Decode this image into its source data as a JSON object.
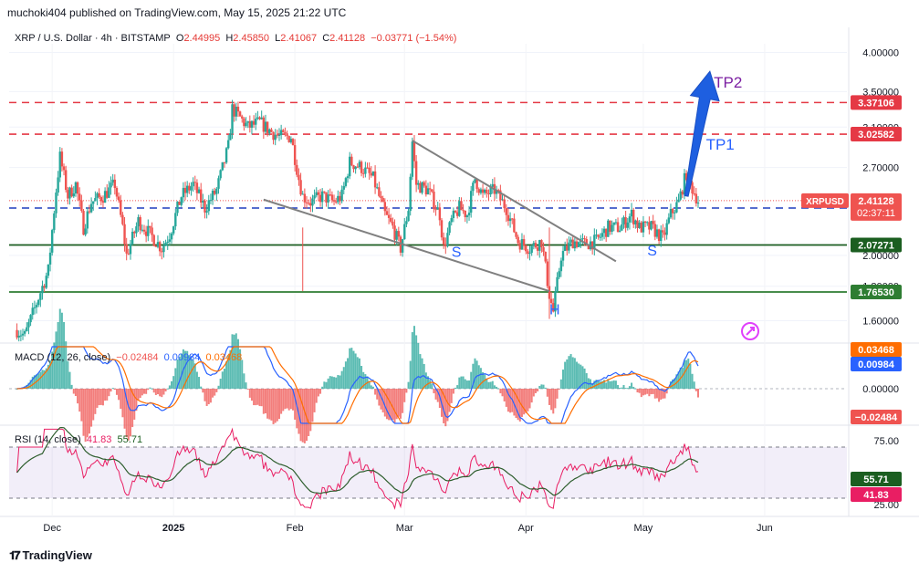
{
  "header": {
    "attribution": "muchoki404 published on TradingView.com, May 15, 2025 21:22 UTC"
  },
  "legend": {
    "symbol": "XRP / U.S. Dollar · 4h · BITSTAMP",
    "open_label": "O",
    "open": "2.44995",
    "high_label": "H",
    "high": "2.45850",
    "low_label": "L",
    "low": "2.41067",
    "close_label": "C",
    "close": "2.41128",
    "change": "−0.03771 (−1.54%)"
  },
  "macd_legend": {
    "name": "MACD (12, 26, close)",
    "hist": "−0.02484",
    "macd": "0.00984",
    "signal": "0.03468"
  },
  "rsi_legend": {
    "name": "RSI (14, close)",
    "rsi": "41.83",
    "ma": "55.71"
  },
  "footer": {
    "brand": "TradingView"
  },
  "colors": {
    "up": "#26a69a",
    "down": "#ef5350",
    "red_dash": "#e53945",
    "blue_dash": "#1f3fbf",
    "green_line": "#1b5e20",
    "arrow": "#1e5fe0",
    "tp_text": "#7b1fa2",
    "pattern_text": "#2962ff"
  },
  "chart_data": [
    {
      "type": "candlestick",
      "title": "XRP / U.S. Dollar · 4h · BITSTAMP",
      "x_ticks": [
        "Dec",
        "2025",
        "Feb",
        "Mar",
        "Apr",
        "May",
        "Jun"
      ],
      "y_ticks": [
        "4.00000",
        "3.50000",
        "3.10000",
        "2.70000",
        "2.00000",
        "1.80000",
        "1.60000"
      ],
      "ylim": [
        1.52,
        4.12
      ],
      "y_scale": "log",
      "close_path": [
        [
          "2024-11-22",
          1.55
        ],
        [
          "2024-11-24",
          1.52
        ],
        [
          "2024-11-27",
          1.7
        ],
        [
          "2024-11-30",
          1.9
        ],
        [
          "2024-12-02",
          2.5
        ],
        [
          "2024-12-03",
          2.8
        ],
        [
          "2024-12-05",
          2.45
        ],
        [
          "2024-12-07",
          2.55
        ],
        [
          "2024-12-09",
          2.2
        ],
        [
          "2024-12-11",
          2.4
        ],
        [
          "2024-12-14",
          2.45
        ],
        [
          "2024-12-17",
          2.55
        ],
        [
          "2024-12-19",
          2.2
        ],
        [
          "2024-12-20",
          2.0
        ],
        [
          "2024-12-23",
          2.25
        ],
        [
          "2024-12-26",
          2.15
        ],
        [
          "2024-12-29",
          2.05
        ],
        [
          "2024-12-31",
          2.15
        ],
        [
          "2025-01-03",
          2.45
        ],
        [
          "2025-01-06",
          2.55
        ],
        [
          "2025-01-09",
          2.35
        ],
        [
          "2025-01-12",
          2.5
        ],
        [
          "2025-01-15",
          2.9
        ],
        [
          "2025-01-16",
          3.3
        ],
        [
          "2025-01-18",
          3.2
        ],
        [
          "2025-01-20",
          3.1
        ],
        [
          "2025-01-23",
          3.15
        ],
        [
          "2025-01-26",
          3.05
        ],
        [
          "2025-01-28",
          3.0
        ],
        [
          "2025-01-31",
          3.0
        ],
        [
          "2025-02-02",
          2.6
        ],
        [
          "2025-02-03",
          2.45
        ],
        [
          "2025-02-05",
          2.4
        ],
        [
          "2025-02-08",
          2.45
        ],
        [
          "2025-02-11",
          2.4
        ],
        [
          "2025-02-13",
          2.45
        ],
        [
          "2025-02-15",
          2.75
        ],
        [
          "2025-02-18",
          2.7
        ],
        [
          "2025-02-21",
          2.6
        ],
        [
          "2025-02-24",
          2.3
        ],
        [
          "2025-02-26",
          2.2
        ],
        [
          "2025-02-28",
          2.05
        ],
        [
          "2025-03-02",
          2.35
        ],
        [
          "2025-03-03",
          2.95
        ],
        [
          "2025-03-04",
          2.55
        ],
        [
          "2025-03-07",
          2.5
        ],
        [
          "2025-03-10",
          2.3
        ],
        [
          "2025-03-11",
          2.05
        ],
        [
          "2025-03-13",
          2.25
        ],
        [
          "2025-03-15",
          2.35
        ],
        [
          "2025-03-17",
          2.3
        ],
        [
          "2025-03-19",
          2.6
        ],
        [
          "2025-03-21",
          2.45
        ],
        [
          "2025-03-24",
          2.5
        ],
        [
          "2025-03-27",
          2.35
        ],
        [
          "2025-03-30",
          2.1
        ],
        [
          "2025-04-02",
          2.05
        ],
        [
          "2025-04-05",
          2.1
        ],
        [
          "2025-04-07",
          1.75
        ],
        [
          "2025-04-08",
          1.65
        ],
        [
          "2025-04-10",
          2.0
        ],
        [
          "2025-04-13",
          2.1
        ],
        [
          "2025-04-16",
          2.08
        ],
        [
          "2025-04-19",
          2.1
        ],
        [
          "2025-04-22",
          2.2
        ],
        [
          "2025-04-25",
          2.2
        ],
        [
          "2025-04-28",
          2.3
        ],
        [
          "2025-04-30",
          2.2
        ],
        [
          "2025-05-03",
          2.2
        ],
        [
          "2025-05-06",
          2.12
        ],
        [
          "2025-05-08",
          2.3
        ],
        [
          "2025-05-10",
          2.4
        ],
        [
          "2025-05-12",
          2.65
        ],
        [
          "2025-05-13",
          2.55
        ],
        [
          "2025-05-15",
          2.41
        ]
      ],
      "price_labels": [
        {
          "value": "3.37106",
          "price": 3.37106,
          "color": "#e53945",
          "style": "dashed"
        },
        {
          "value": "3.02582",
          "price": 3.02582,
          "color": "#e53945",
          "style": "dashed"
        },
        {
          "value": "2.35127",
          "price": 2.35127,
          "color": "#1f3fbf",
          "style": "dashed"
        },
        {
          "value": "2.07271",
          "price": 2.07271,
          "color": "#1b5e20",
          "style": "solid"
        },
        {
          "value": "1.76530",
          "price": 1.7653,
          "color": "#2e7d32",
          "style": "solid"
        }
      ],
      "current_price": {
        "symbol": "XRPUSD",
        "value": "2.41128",
        "countdown": "02:37:11",
        "price": 2.41128
      },
      "annotations": [
        {
          "text": "TP2",
          "date": "2025-05-19",
          "price": 3.55
        },
        {
          "text": "TP1",
          "date": "2025-05-17",
          "price": 2.87
        },
        {
          "text": "S",
          "date": "2025-03-13",
          "price": 1.99
        },
        {
          "text": "S",
          "date": "2025-05-02",
          "price": 2.0
        },
        {
          "text": "H",
          "date": "2025-04-07",
          "price": 1.635
        }
      ],
      "wedge_lines": [
        [
          [
            "2025-03-03",
            2.96
          ],
          [
            "2025-04-24",
            1.96
          ]
        ],
        [
          [
            "2025-01-24",
            2.42
          ],
          [
            "2025-04-07",
            1.77
          ]
        ]
      ],
      "arrow": {
        "from": [
          "2025-05-12",
          2.45
        ],
        "to": [
          "2025-05-18",
          3.75
        ]
      }
    },
    {
      "type": "macd",
      "title": "MACD (12, 26, close)",
      "values": {
        "histogram": -0.02484,
        "macd": 0.00984,
        "signal": 0.03468
      },
      "y_ticks": [
        "0.00000"
      ],
      "price_labels": [
        {
          "value": "0.03468",
          "color": "#ff6d00"
        },
        {
          "value": "0.00984",
          "color": "#2962ff"
        },
        {
          "value": "−0.02484",
          "color": "#ef5350"
        }
      ]
    },
    {
      "type": "rsi",
      "title": "RSI (14, close)",
      "values": {
        "rsi": 41.83,
        "rsi_ma": 55.71
      },
      "y_ticks": [
        "75.00",
        "25.00"
      ],
      "band": [
        30,
        70
      ],
      "price_labels": [
        {
          "value": "55.71",
          "color": "#1b5e20"
        },
        {
          "value": "41.83",
          "color": "#e91e63"
        }
      ]
    }
  ]
}
